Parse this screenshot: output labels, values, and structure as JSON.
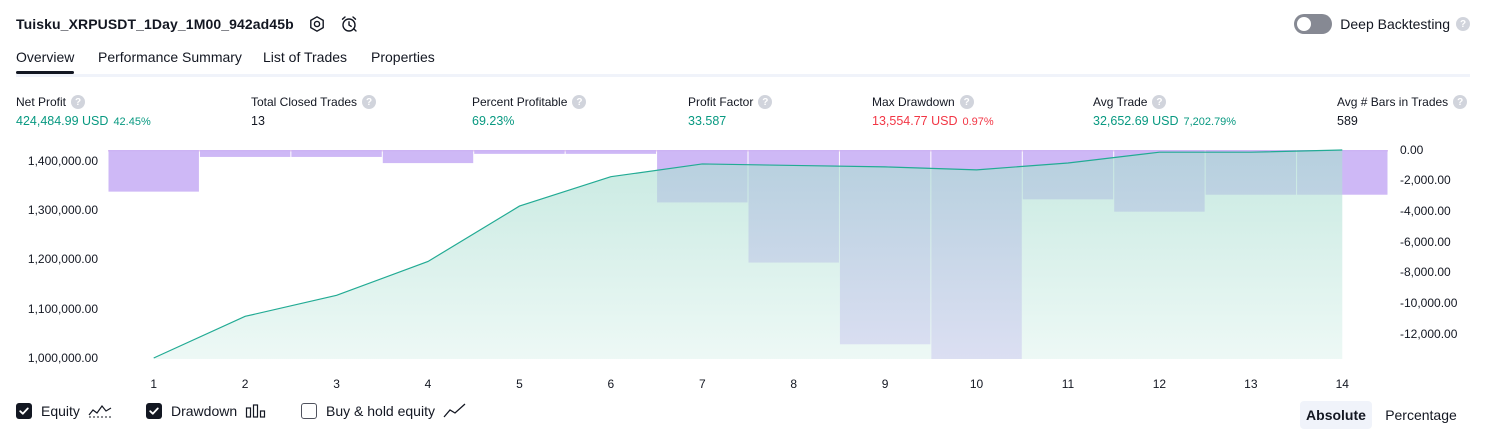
{
  "header": {
    "title": "Tuisku_XRPUSDT_1Day_1M00_942ad45b"
  },
  "deep_backtesting": {
    "label": "Deep Backtesting",
    "enabled": false
  },
  "tabs": [
    {
      "label": "Overview",
      "active": true
    },
    {
      "label": "Performance Summary",
      "active": false
    },
    {
      "label": "List of Trades",
      "active": false
    },
    {
      "label": "Properties",
      "active": false
    }
  ],
  "metrics": [
    {
      "label": "Net Profit",
      "value": "424,484.99 USD",
      "pct": "42.45%",
      "tone": "pos"
    },
    {
      "label": "Total Closed Trades",
      "value": "13",
      "pct": "",
      "tone": "neutral"
    },
    {
      "label": "Percent Profitable",
      "value": "69.23%",
      "pct": "",
      "tone": "pos"
    },
    {
      "label": "Profit Factor",
      "value": "33.587",
      "pct": "",
      "tone": "pos"
    },
    {
      "label": "Max Drawdown",
      "value": "13,554.77 USD",
      "pct": "0.97%",
      "tone": "neg"
    },
    {
      "label": "Avg Trade",
      "value": "32,652.69 USD",
      "pct": "7,202.79%",
      "tone": "pos"
    },
    {
      "label": "Avg # Bars in Trades",
      "value": "589",
      "pct": "",
      "tone": "neutral"
    }
  ],
  "chart_data": {
    "type": "area",
    "x": [
      1,
      2,
      3,
      4,
      5,
      6,
      7,
      8,
      9,
      10,
      11,
      12,
      13,
      14
    ],
    "series": [
      {
        "name": "Equity",
        "type": "area",
        "values": [
          1000000,
          1085000,
          1128000,
          1197000,
          1310000,
          1370000,
          1396000,
          1393000,
          1390000,
          1384000,
          1398000,
          1420000,
          1420000,
          1424485
        ]
      },
      {
        "name": "Drawdown",
        "type": "bar",
        "values": [
          -2700,
          -450,
          -450,
          -850,
          -250,
          -250,
          -3400,
          -7300,
          -12600,
          -13555,
          -3200,
          -4000,
          -2900,
          -2900
        ]
      }
    ],
    "left_axis": {
      "ticks": [
        "1,400,000.00",
        "1,300,000.00",
        "1,200,000.00",
        "1,100,000.00",
        "1,000,000.00"
      ],
      "range": [
        1000000,
        1424485
      ]
    },
    "right_axis": {
      "ticks": [
        "0.00",
        "-2,000.00",
        "-4,000.00",
        "-6,000.00",
        "-8,000.00",
        "-10,000.00",
        "-12,000.00"
      ],
      "range": [
        -13555,
        0
      ]
    },
    "colors": {
      "equity_line": "#22ab94",
      "equity_fill": "#b2e3d6",
      "drawdown": "#c9b0f5",
      "baseline": "#e6c7ec"
    }
  },
  "legend": {
    "items": [
      {
        "label": "Equity",
        "checked": true,
        "icon": "equity-icon"
      },
      {
        "label": "Drawdown",
        "checked": true,
        "icon": "drawdown-bars-icon"
      },
      {
        "label": "Buy & hold equity",
        "checked": false,
        "icon": "line-chart-icon"
      }
    ]
  },
  "view_mode": {
    "options": [
      "Absolute",
      "Percentage"
    ],
    "selected": "Absolute"
  }
}
